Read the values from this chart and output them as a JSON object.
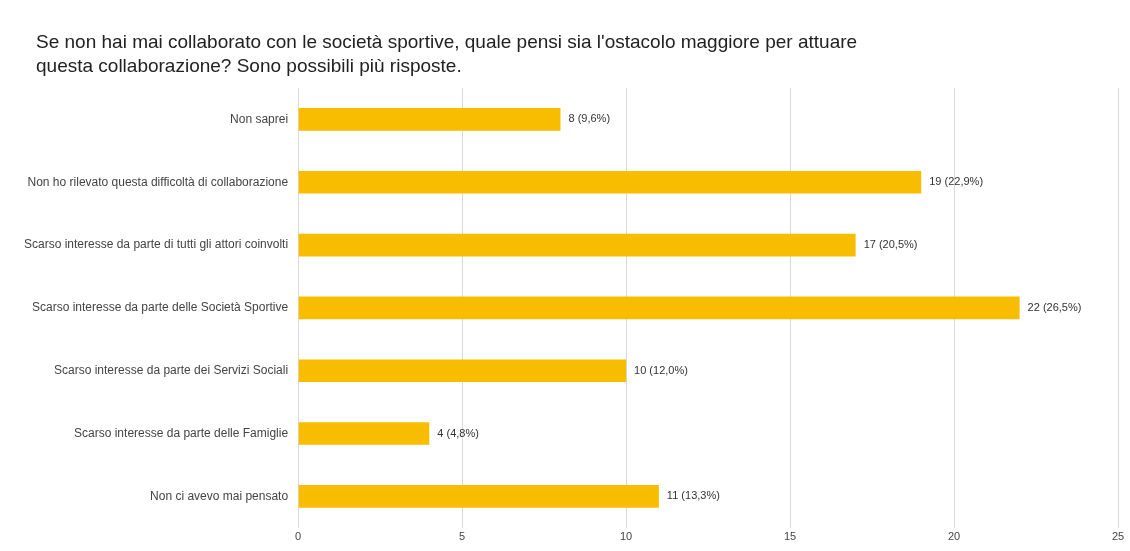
{
  "chart_data": {
    "type": "bar",
    "orientation": "horizontal",
    "title": "Se non hai mai collaborato con le società sportive, quale pensi sia l'ostacolo maggiore per attuare questa collaborazione? Sono possibili più risposte.",
    "categories": [
      "Non saprei",
      "Non ho rilevato questa difficoltà di collaborazione",
      "Scarso interesse da parte di tutti gli attori coinvolti",
      "Scarso interesse da parte delle Società Sportive",
      "Scarso interesse da parte dei Servizi Sociali",
      "Scarso interesse da parte delle Famiglie",
      "Non ci avevo mai pensato"
    ],
    "values": [
      8,
      19,
      17,
      22,
      10,
      4,
      11
    ],
    "value_labels": [
      "8 (9,6%)",
      "19 (22,9%)",
      "17 (20,5%)",
      "22 (26,5%)",
      "10 (12,0%)",
      "4 (4,8%)",
      "11 (13,3%)"
    ],
    "color": "#f9bd00",
    "xlim": [
      0,
      25
    ],
    "xticks": [
      0,
      5,
      10,
      15,
      20,
      25
    ],
    "grid": "x",
    "legend": false
  }
}
